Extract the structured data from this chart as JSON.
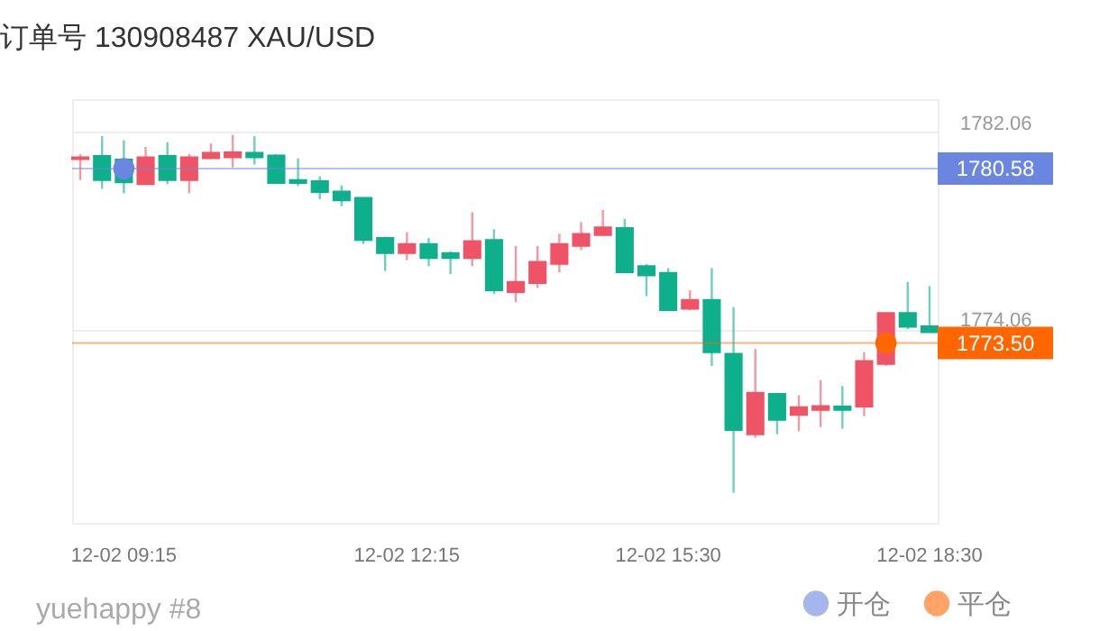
{
  "chart_data": {
    "type": "candlestick",
    "title": "订单号 130908487 XAU/USD",
    "annotations": [
      "yuehappy #8"
    ],
    "categories": [
      null,
      null,
      "12-02 09:15",
      null,
      null,
      null,
      null,
      null,
      null,
      null,
      null,
      null,
      null,
      null,
      null,
      "12-02 12:15",
      null,
      null,
      null,
      null,
      null,
      null,
      null,
      null,
      null,
      null,
      null,
      "12-02 15:30",
      null,
      null,
      null,
      null,
      null,
      null,
      null,
      null,
      null,
      null,
      null,
      "12-02 18:30"
    ],
    "ohlc": [
      [
        1780.97,
        1781.17,
        1780.12,
        1781.04
      ],
      [
        1781.09,
        1781.9,
        1779.76,
        1780.12
      ],
      [
        1780.95,
        1781.73,
        1779.58,
        1780.02
      ],
      [
        1779.95,
        1781.46,
        1779.95,
        1781.04
      ],
      [
        1781.09,
        1781.65,
        1779.95,
        1780.12
      ],
      [
        1780.12,
        1781.17,
        1779.58,
        1781.04
      ],
      [
        1781.0,
        1781.6,
        1781.0,
        1781.22
      ],
      [
        1781.04,
        1781.95,
        1780.63,
        1781.24
      ],
      [
        1781.22,
        1781.9,
        1780.75,
        1781.04
      ],
      [
        1781.11,
        1781.17,
        1779.95,
        1780.0
      ],
      [
        1780.12,
        1781.0,
        1779.87,
        1780.0
      ],
      [
        1780.07,
        1780.27,
        1779.34,
        1779.63
      ],
      [
        1779.65,
        1779.9,
        1779.05,
        1779.29
      ],
      [
        1779.39,
        1779.39,
        1777.52,
        1777.68
      ],
      [
        1777.76,
        1777.81,
        1776.42,
        1777.15
      ],
      [
        1777.15,
        1778.0,
        1776.86,
        1777.52
      ],
      [
        1777.52,
        1777.76,
        1776.62,
        1776.95
      ],
      [
        1777.15,
        1777.22,
        1776.3,
        1776.95
      ],
      [
        1776.95,
        1778.81,
        1776.62,
        1777.64
      ],
      [
        1777.68,
        1778.12,
        1775.49,
        1775.64
      ],
      [
        1775.57,
        1777.44,
        1775.16,
        1775.98
      ],
      [
        1775.93,
        1777.44,
        1775.74,
        1776.79
      ],
      [
        1776.71,
        1777.93,
        1776.37,
        1777.52
      ],
      [
        1777.44,
        1778.41,
        1777.27,
        1777.93
      ],
      [
        1777.88,
        1778.9,
        1777.88,
        1778.19
      ],
      [
        1778.17,
        1778.54,
        1776.37,
        1776.37
      ],
      [
        1776.62,
        1776.71,
        1775.4,
        1776.25
      ],
      [
        1776.35,
        1776.54,
        1774.84,
        1774.84
      ],
      [
        1774.89,
        1775.64,
        1774.84,
        1775.25
      ],
      [
        1775.25,
        1776.54,
        1772.57,
        1773.13
      ],
      [
        1773.06,
        1774.96,
        1767.42,
        1769.97
      ],
      [
        1769.8,
        1773.26,
        1769.65,
        1771.48
      ],
      [
        1771.43,
        1771.43,
        1769.8,
        1770.38
      ],
      [
        1770.58,
        1771.38,
        1769.92,
        1770.89
      ],
      [
        1770.78,
        1771.99,
        1770.09,
        1770.94
      ],
      [
        1770.92,
        1771.75,
        1770.02,
        1770.78
      ],
      [
        1770.92,
        1773.13,
        1770.53,
        1772.77
      ],
      [
        1772.65,
        1774.72,
        1772.57,
        1774.72
      ],
      [
        1774.72,
        1775.98,
        1774.06,
        1774.16
      ],
      [
        1774.18,
        1775.81,
        1773.94,
        1773.94
      ]
    ],
    "colors": [
      "#ef5466",
      "#0eb08c",
      "#0eb08c",
      "#ef5466",
      "#0eb08c",
      "#ef5466",
      "#ef5466",
      "#ef5466",
      "#0eb08c",
      "#0eb08c",
      "#0eb08c",
      "#0eb08c",
      "#0eb08c",
      "#0eb08c",
      "#0eb08c",
      "#ef5466",
      "#0eb08c",
      "#0eb08c",
      "#ef5466",
      "#0eb08c",
      "#ef5466",
      "#ef5466",
      "#ef5466",
      "#ef5466",
      "#ef5466",
      "#0eb08c",
      "#0eb08c",
      "#0eb08c",
      "#ef5466",
      "#0eb08c",
      "#0eb08c",
      "#ef5466",
      "#0eb08c",
      "#ef5466",
      "#ef5466",
      "#0eb08c",
      "#ef5466",
      "#ef5466",
      "#0eb08c",
      "#0eb08c"
    ],
    "series": [
      {
        "name": "开仓",
        "type": "scatter",
        "color": "#6b86e0",
        "values": [
          null,
          null,
          1780.58,
          null,
          null,
          null,
          null,
          null,
          null,
          null,
          null,
          null,
          null,
          null,
          null,
          null,
          null,
          null,
          null,
          null,
          null,
          null,
          null,
          null,
          null,
          null,
          null,
          null,
          null,
          null,
          null,
          null,
          null,
          null,
          null,
          null,
          null,
          null,
          null,
          null
        ]
      },
      {
        "name": "平仓",
        "type": "scatter",
        "color": "#ff6600",
        "values": [
          null,
          null,
          null,
          null,
          null,
          null,
          null,
          null,
          null,
          null,
          null,
          null,
          null,
          null,
          null,
          null,
          null,
          null,
          null,
          null,
          null,
          null,
          null,
          null,
          null,
          null,
          null,
          null,
          null,
          null,
          null,
          null,
          null,
          null,
          null,
          null,
          null,
          1773.5,
          null,
          null
        ]
      }
    ],
    "ylim": [
      1766.2,
      1783.4
    ],
    "yticks": [
      1782.06,
      1774.06
    ],
    "ref_lines": [
      {
        "axis": "y",
        "value": 1780.58,
        "label": "1780.58",
        "color": "#6b86e0"
      },
      {
        "axis": "y",
        "value": 1773.5,
        "label": "1773.50",
        "color": "#ff6600"
      }
    ],
    "grid": "y",
    "legend": "bottom right",
    "marker": "circle"
  }
}
